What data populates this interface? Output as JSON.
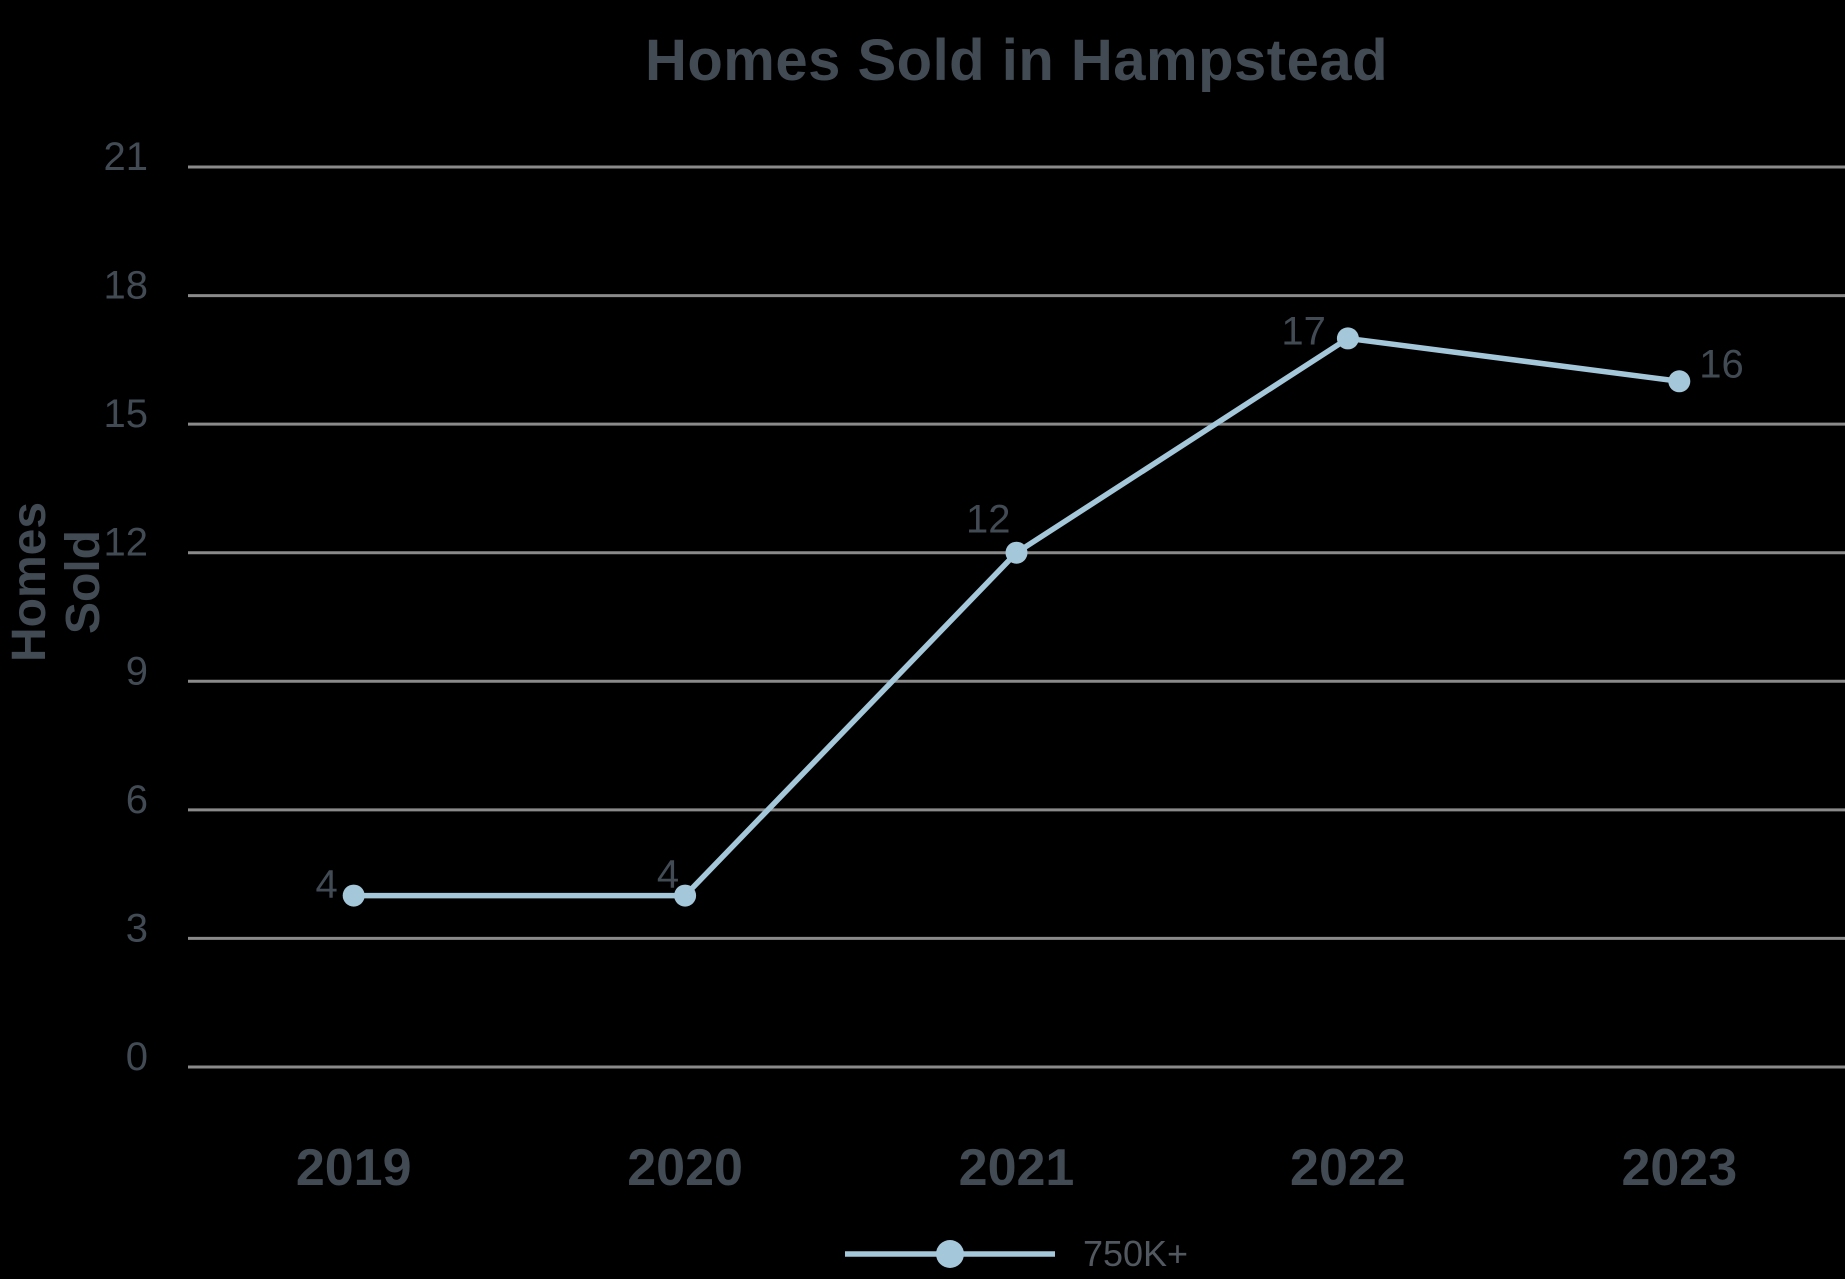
{
  "colors": {
    "background": "#000000",
    "text": "#424B54",
    "grid": "#8A8A8A",
    "series": "#A4C7D9",
    "legend_text": "#51585F"
  },
  "chart_data": {
    "type": "line",
    "title": "Homes Sold in Hampstead",
    "ylabel": "Homes Sold",
    "xlabel": "",
    "x": [
      "2019",
      "2020",
      "2021",
      "2022",
      "2023"
    ],
    "series": [
      {
        "name": "750K+",
        "values": [
          4,
          4,
          12,
          17,
          16
        ]
      }
    ],
    "data_labels": [
      "4",
      "4",
      "12",
      "17",
      "16"
    ],
    "ylim": [
      0,
      21
    ],
    "yticks": [
      0,
      3,
      6,
      9,
      12,
      15,
      18,
      21
    ],
    "grid": true,
    "legend_position": "bottom",
    "marker": "circle"
  }
}
